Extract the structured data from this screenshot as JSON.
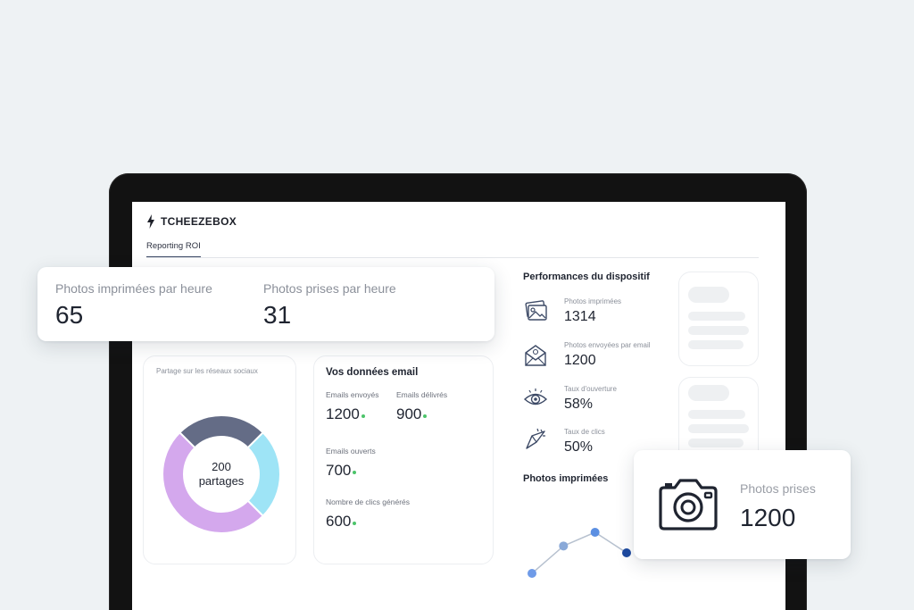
{
  "brand": {
    "name": "TCHEEZEBOX"
  },
  "nav": {
    "active_tab": "Reporting ROI"
  },
  "top_stats": [
    {
      "label": "Photos imprimées par heure",
      "value": "65"
    },
    {
      "label": "Photos prises par heure",
      "value": "31"
    }
  ],
  "social": {
    "title": "Partage sur les réseaux sociaux",
    "total_value": "200",
    "total_unit": "partages",
    "chart_data": {
      "type": "pie",
      "series": [
        {
          "name": "",
          "value": 25,
          "color": "#646c86"
        },
        {
          "name": "",
          "value": 25,
          "color": "#9ee4f6"
        },
        {
          "name": "",
          "value": 50,
          "color": "#d4a8ed"
        }
      ]
    }
  },
  "email": {
    "title": "Vos données email",
    "sent_label": "Emails envoyés",
    "sent_value": "1200",
    "delivered_label": "Emails délivrés",
    "delivered_value": "900",
    "opened_label": "Emails ouverts",
    "opened_value": "700",
    "clicks_label": "Nombre de clics générés",
    "clicks_value": "600"
  },
  "performance": {
    "title": "Performances du dispositif",
    "items": [
      {
        "label": "Photos imprimées",
        "value": "1314",
        "icon": "photos-icon"
      },
      {
        "label": "Photos envoyées par email",
        "value": "1200",
        "icon": "email-icon"
      },
      {
        "label": "Taux d'ouverture",
        "value": "58%",
        "icon": "eye-icon"
      },
      {
        "label": "Taux de clics",
        "value": "50%",
        "icon": "cursor-click-icon"
      }
    ]
  },
  "photos_printed": {
    "title": "Photos imprimées",
    "chart_data": {
      "type": "line",
      "x": [
        1,
        2,
        3,
        4
      ],
      "y": [
        1,
        3,
        4,
        2.5
      ],
      "point_colors": [
        "#6f9be8",
        "#8aa9d8",
        "#5b8fe2",
        "#1e4aa0"
      ],
      "line_color": "#b7c1cf"
    }
  },
  "photos_taken": {
    "label": "Photos prises",
    "value": "1200",
    "icon": "camera-icon"
  }
}
